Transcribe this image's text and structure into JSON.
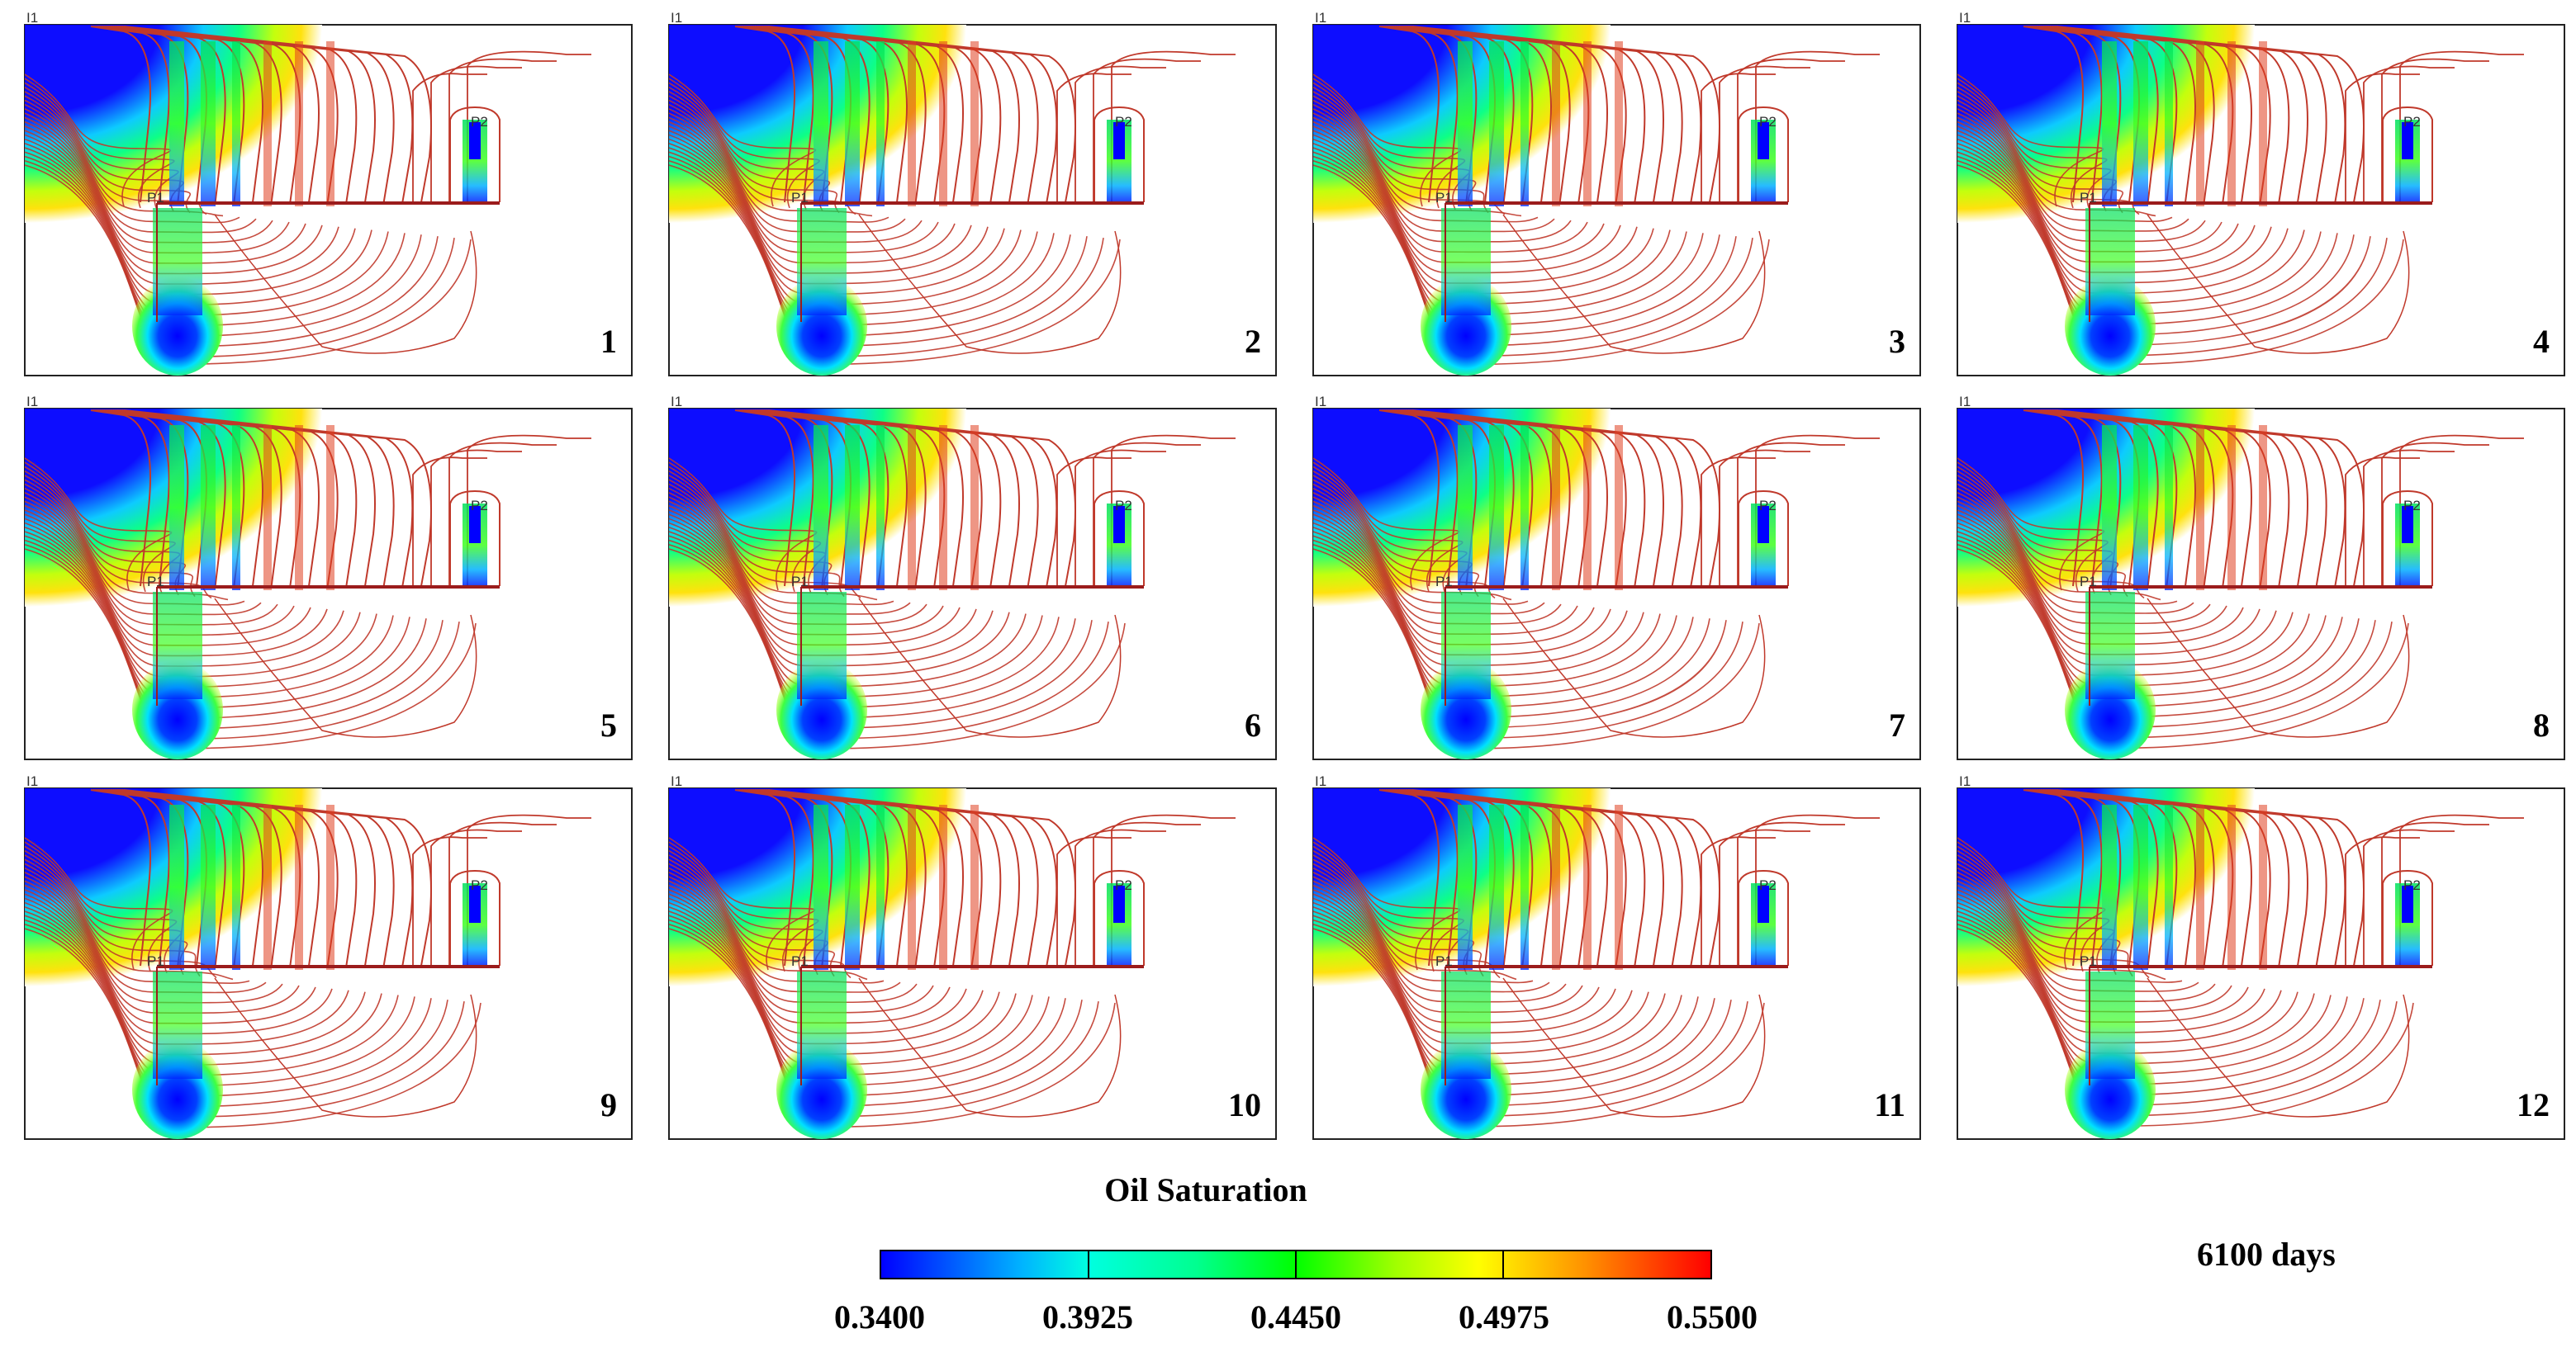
{
  "panels": [
    {
      "number": "1"
    },
    {
      "number": "2"
    },
    {
      "number": "3"
    },
    {
      "number": "4"
    },
    {
      "number": "5"
    },
    {
      "number": "6"
    },
    {
      "number": "7"
    },
    {
      "number": "8"
    },
    {
      "number": "9"
    },
    {
      "number": "10"
    },
    {
      "number": "11"
    },
    {
      "number": "12"
    }
  ],
  "well_labels": {
    "injector_corner": "I1",
    "producer_1": "P1",
    "producer_2": "P2"
  },
  "colorbar": {
    "title": "Oil Saturation",
    "ticks": [
      "0.3400",
      "0.3925",
      "0.4450",
      "0.4975",
      "0.5500"
    ],
    "colors": [
      "#0000ff",
      "#00ffff",
      "#00ff00",
      "#ffff00",
      "#ff0000"
    ]
  },
  "time_label": "6100 days",
  "colors": {
    "streamline": "#c0392b",
    "well_bar": "#9b1c1c",
    "low_saturation": "#0000ff"
  }
}
